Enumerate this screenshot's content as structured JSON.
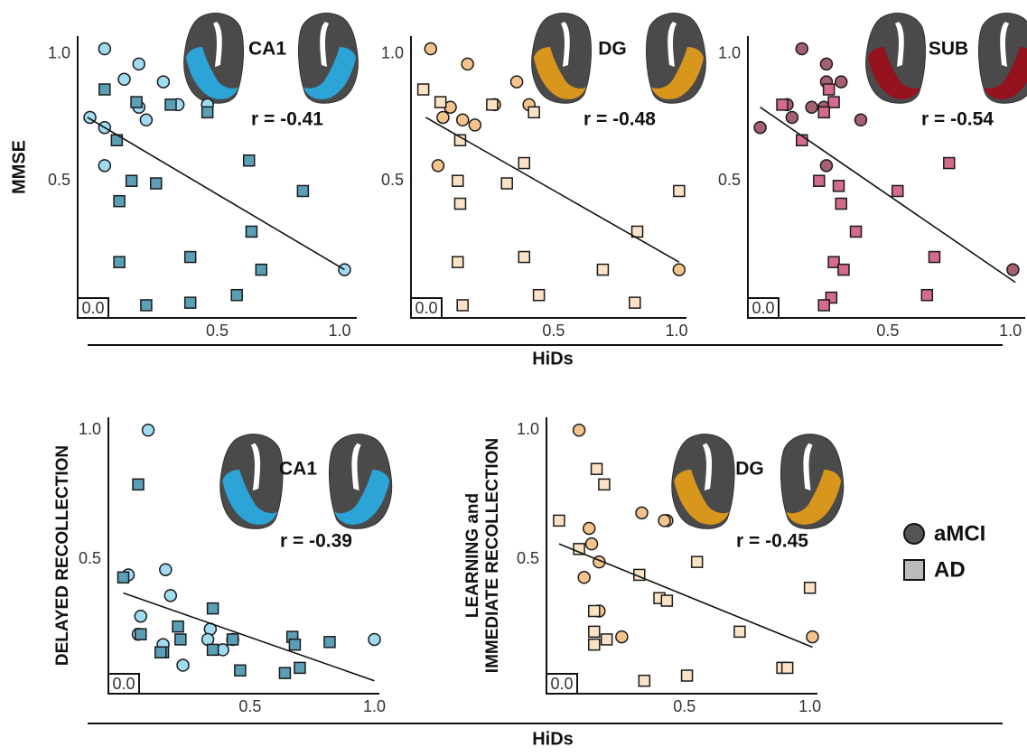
{
  "legend": [
    {
      "name": "aMCI",
      "marker": "circle"
    },
    {
      "name": "AD",
      "marker": "square"
    }
  ],
  "shared_labels": {
    "top_xlabel": "HiDs",
    "top_ylabel": "MMSE",
    "bottom_xlabel": "HiDs"
  },
  "chart_data": [
    {
      "type": "scatter",
      "title": "CA1",
      "annotation": "r = -0.41",
      "region_color": "#2aa9df",
      "xlim": [
        -0.07,
        1.07
      ],
      "ylim": [
        -0.04,
        1.07
      ],
      "xticks": [
        {
          "value": 0.5,
          "label": "0.5"
        },
        {
          "value": 1,
          "label": "1.0"
        }
      ],
      "yticks": [
        {
          "value": 0.5,
          "label": "0.5"
        },
        {
          "value": 1,
          "label": "1.0"
        }
      ],
      "origin_label": "0.0",
      "series": [
        {
          "marker": "circle",
          "color": "#9fdcf2",
          "x": [
            0.04,
            0.18,
            0.12,
            0.28,
            0.18,
            0.21,
            0.34,
            0.46,
            -0.02,
            0.04,
            0.04,
            1.02
          ],
          "y": [
            1.02,
            0.96,
            0.9,
            0.89,
            0.79,
            0.74,
            0.8,
            0.8,
            0.75,
            0.71,
            0.56,
            0.15
          ]
        },
        {
          "marker": "square",
          "color": "#5b9fb6",
          "x": [
            0.04,
            0.17,
            0.31,
            0.46,
            0.09,
            0.15,
            0.25,
            0.1,
            0.63,
            0.85,
            0.64,
            0.1,
            0.39,
            0.68,
            0.58,
            0.39,
            0.21
          ],
          "y": [
            0.86,
            0.81,
            0.8,
            0.77,
            0.66,
            0.5,
            0.49,
            0.42,
            0.58,
            0.46,
            0.3,
            0.18,
            0.2,
            0.15,
            0.05,
            0.02,
            0.01
          ]
        }
      ],
      "fit_line": {
        "x": [
          -0.03,
          1.02
        ],
        "y": [
          0.75,
          0.15
        ]
      }
    },
    {
      "type": "scatter",
      "title": "DG",
      "annotation": "r = -0.48",
      "region_color": "#e09a1a",
      "xlim": [
        -0.08,
        1.04
      ],
      "ylim": [
        -0.04,
        1.07
      ],
      "xticks": [
        {
          "value": 0.5,
          "label": "0.5"
        },
        {
          "value": 1,
          "label": "1.0"
        }
      ],
      "yticks": [
        {
          "value": 0.5,
          "label": "0.5"
        },
        {
          "value": 1,
          "label": "1.0"
        }
      ],
      "origin_label": "0.0",
      "series": [
        {
          "marker": "circle",
          "color": "#f4c48c",
          "x": [
            0.0,
            0.15,
            0.35,
            0.08,
            0.26,
            0.4,
            0.05,
            0.13,
            0.18,
            0.03,
            1.01
          ],
          "y": [
            1.02,
            0.96,
            0.89,
            0.79,
            0.8,
            0.8,
            0.75,
            0.74,
            0.72,
            0.56,
            0.15
          ]
        },
        {
          "marker": "square",
          "color": "#fbe2c4",
          "x": [
            -0.03,
            0.04,
            0.25,
            0.42,
            0.12,
            0.38,
            0.11,
            0.31,
            0.12,
            1.01,
            0.84,
            0.11,
            0.38,
            0.7,
            0.44,
            0.83,
            0.13
          ],
          "y": [
            0.86,
            0.81,
            0.8,
            0.77,
            0.66,
            0.57,
            0.5,
            0.49,
            0.41,
            0.46,
            0.3,
            0.18,
            0.2,
            0.15,
            0.05,
            0.02,
            0.01
          ]
        }
      ],
      "fit_line": {
        "x": [
          -0.02,
          1.01
        ],
        "y": [
          0.75,
          0.18
        ]
      }
    },
    {
      "type": "scatter",
      "title": "SUB",
      "annotation": "r = -0.54",
      "region_color": "#9a0f1c",
      "xlim": [
        -0.07,
        1.06
      ],
      "ylim": [
        -0.04,
        1.07
      ],
      "xticks": [
        {
          "value": 0.5,
          "label": "0.5"
        },
        {
          "value": 1,
          "label": "1.0"
        }
      ],
      "yticks": [
        {
          "value": 0.5,
          "label": "0.5"
        },
        {
          "value": 1,
          "label": "1.0"
        }
      ],
      "origin_label": "0.0",
      "series": [
        {
          "marker": "circle",
          "color": "#a5606f",
          "x": [
            0.15,
            0.25,
            0.25,
            0.31,
            0.09,
            0.19,
            0.24,
            0.11,
            0.39,
            -0.02,
            0.25,
            1.01
          ],
          "y": [
            1.02,
            0.96,
            0.89,
            0.89,
            0.8,
            0.79,
            0.79,
            0.75,
            0.74,
            0.71,
            0.56,
            0.15
          ]
        },
        {
          "marker": "square",
          "color": "#d56b8b",
          "x": [
            0.07,
            0.26,
            0.28,
            0.24,
            0.15,
            0.22,
            0.3,
            0.31,
            0.75,
            0.54,
            0.37,
            0.69,
            0.28,
            0.32,
            0.66,
            0.27,
            0.24
          ],
          "y": [
            0.8,
            0.86,
            0.81,
            0.77,
            0.66,
            0.5,
            0.48,
            0.41,
            0.57,
            0.46,
            0.3,
            0.2,
            0.18,
            0.15,
            0.05,
            0.04,
            0.01
          ]
        }
      ],
      "fit_line": {
        "x": [
          -0.02,
          1.02
        ],
        "y": [
          0.79,
          0.1
        ]
      }
    },
    {
      "type": "scatter",
      "title": "CA1",
      "annotation": "r = -0.39",
      "region_color": "#2aa9df",
      "ylabel": "DELAYED RECOLLECTION",
      "xlim": [
        -0.07,
        1.02
      ],
      "ylim": [
        -0.02,
        1.05
      ],
      "xticks": [
        {
          "value": 0.5,
          "label": "0.5"
        },
        {
          "value": 1,
          "label": "1.0"
        }
      ],
      "yticks": [
        {
          "value": 0.5,
          "label": "0.5"
        },
        {
          "value": 1,
          "label": "1.0"
        }
      ],
      "origin_label": "0.0",
      "series": [
        {
          "marker": "circle",
          "color": "#9fdcf2",
          "x": [
            0.09,
            0.01,
            0.16,
            0.18,
            0.06,
            0.05,
            0.15,
            0.34,
            0.39,
            0.23,
            0.33,
            1.0,
            0.43
          ],
          "y": [
            1.0,
            0.44,
            0.46,
            0.36,
            0.28,
            0.21,
            0.17,
            0.23,
            0.15,
            0.09,
            0.19,
            0.19,
            0.19
          ]
        },
        {
          "marker": "square",
          "color": "#5b9fb6",
          "x": [
            0.05,
            -0.01,
            0.35,
            0.21,
            0.06,
            0.22,
            0.35,
            0.15,
            0.14,
            0.43,
            0.67,
            0.68,
            0.82,
            0.46,
            0.7,
            0.64
          ],
          "y": [
            0.79,
            0.43,
            0.31,
            0.24,
            0.21,
            0.19,
            0.15,
            0.14,
            0.14,
            0.19,
            0.2,
            0.17,
            0.18,
            0.07,
            0.08,
            0.06
          ]
        }
      ],
      "fit_line": {
        "x": [
          -0.01,
          1.0
        ],
        "y": [
          0.37,
          0.03
        ]
      }
    },
    {
      "type": "scatter",
      "title": "DG",
      "annotation": "r = -0.45",
      "region_color": "#e09a1a",
      "ylabel": [
        "LEARNING and",
        "IMMEDIATE RECOLLECTION"
      ],
      "xlim": [
        -0.05,
        1.03
      ],
      "ylim": [
        -0.02,
        1.05
      ],
      "xticks": [
        {
          "value": 0.5,
          "label": "0.5"
        },
        {
          "value": 1,
          "label": "1.0"
        }
      ],
      "yticks": [
        {
          "value": 0.5,
          "label": "0.5"
        },
        {
          "value": 1,
          "label": "1.0"
        }
      ],
      "origin_label": "0.0",
      "series": [
        {
          "marker": "circle",
          "color": "#f4c48c",
          "x": [
            0.08,
            0.33,
            0.43,
            0.42,
            0.12,
            0.13,
            0.16,
            0.1,
            0.16,
            0.25,
            1.01
          ],
          "y": [
            1.0,
            0.68,
            0.65,
            0.65,
            0.62,
            0.56,
            0.49,
            0.43,
            0.3,
            0.2,
            0.2
          ]
        },
        {
          "marker": "square",
          "color": "#fbe2c4",
          "x": [
            0.0,
            0.15,
            0.18,
            0.08,
            0.32,
            0.55,
            0.4,
            0.43,
            0.14,
            0.14,
            1.0,
            0.72,
            0.19,
            0.14,
            0.34,
            0.51,
            0.89,
            0.91
          ],
          "y": [
            0.65,
            0.85,
            0.79,
            0.54,
            0.44,
            0.49,
            0.35,
            0.34,
            0.3,
            0.22,
            0.39,
            0.22,
            0.19,
            0.17,
            0.03,
            0.05,
            0.08,
            0.08
          ]
        }
      ],
      "fit_line": {
        "x": [
          0.0,
          1.01
        ],
        "y": [
          0.56,
          0.16
        ]
      }
    }
  ]
}
